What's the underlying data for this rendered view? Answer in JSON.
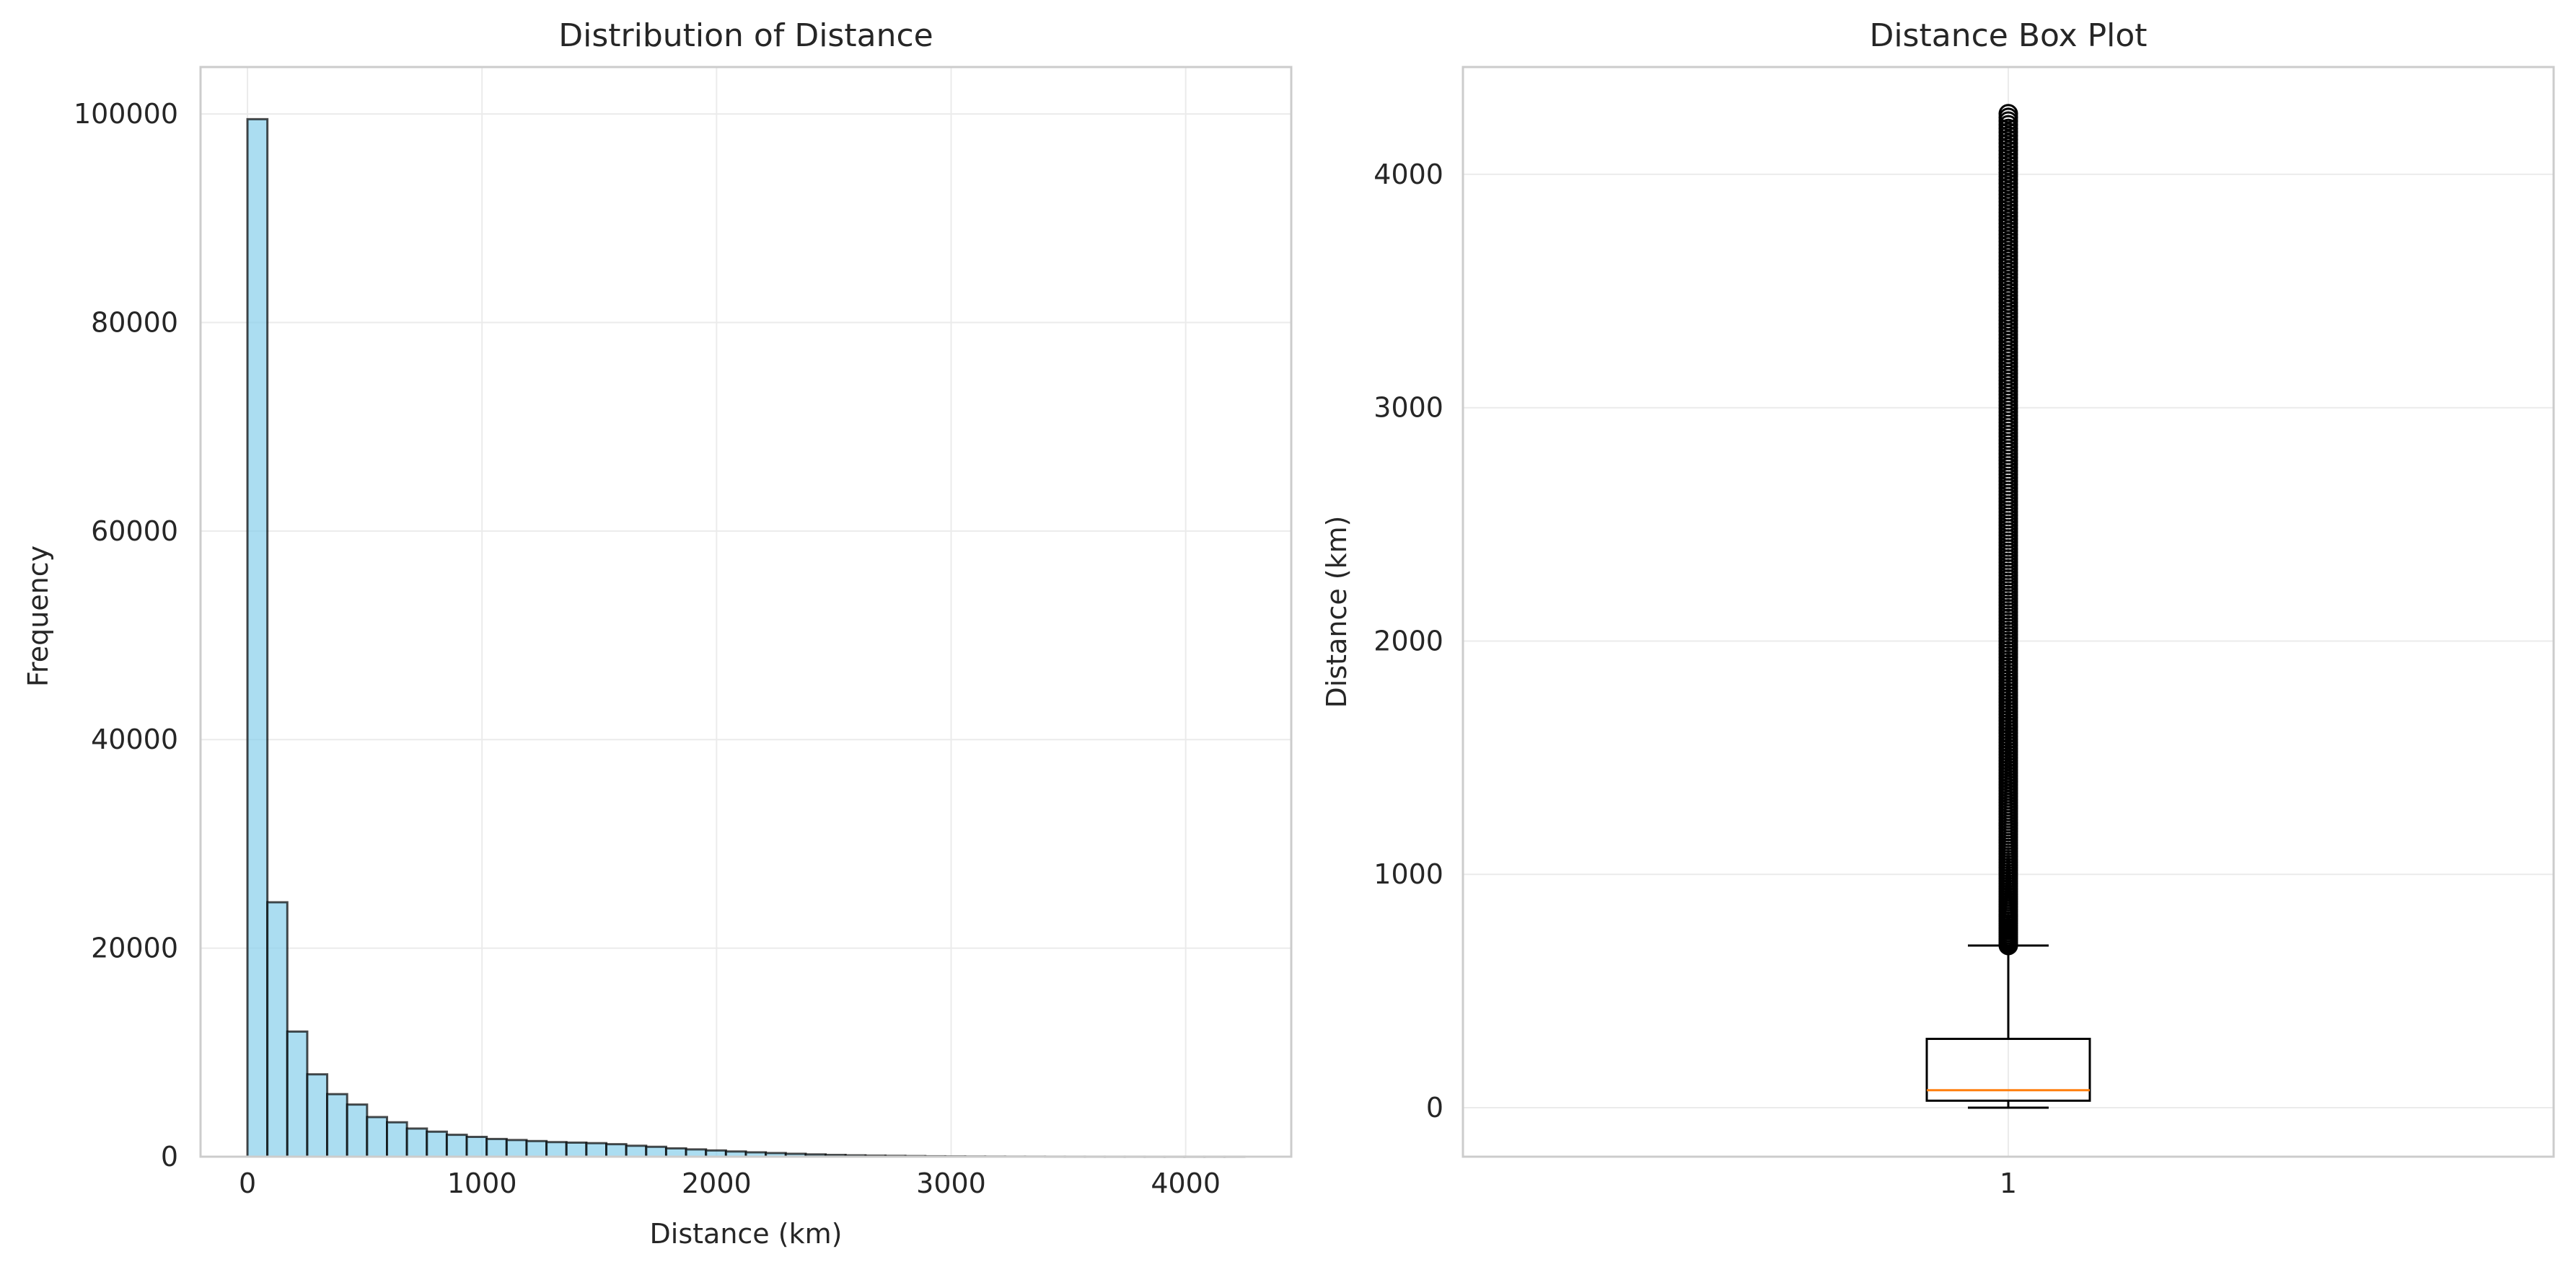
{
  "chart_data": [
    {
      "type": "bar",
      "subtype": "histogram",
      "title": "Distribution of Distance",
      "xlabel": "Distance (km)",
      "ylabel": "Frequency",
      "xlim": [
        -200,
        4450
      ],
      "ylim": [
        0,
        104500
      ],
      "xticks": [
        0,
        1000,
        2000,
        3000,
        4000
      ],
      "yticks": [
        0,
        20000,
        40000,
        60000,
        80000,
        100000
      ],
      "grid": true,
      "bin_start": 0,
      "bin_width": 85,
      "values": [
        99500,
        24400,
        12000,
        7900,
        6000,
        5000,
        3800,
        3300,
        2700,
        2400,
        2100,
        1900,
        1700,
        1600,
        1500,
        1400,
        1350,
        1300,
        1200,
        1050,
        950,
        800,
        700,
        600,
        500,
        420,
        350,
        280,
        220,
        170,
        130,
        100,
        80,
        60,
        40,
        30,
        20,
        15,
        10,
        8,
        5,
        4,
        3,
        2,
        2,
        1,
        1,
        1,
        1,
        1
      ],
      "colors": {
        "bar_fill": "#87ceeb",
        "bar_edge": "#000000"
      }
    },
    {
      "type": "box",
      "title": "Distance Box Plot",
      "xlabel": "",
      "ylabel": "Distance (km)",
      "ylim": [
        -210,
        4460
      ],
      "yticks": [
        0,
        1000,
        2000,
        3000,
        4000
      ],
      "xticks": [
        "1"
      ],
      "grid": true,
      "box": {
        "whisker_low": 0,
        "q1": 30,
        "median": 75,
        "q3": 295,
        "whisker_high": 695,
        "outliers_from": 695,
        "outliers_to": 4260
      },
      "colors": {
        "median": "#ff7f0e",
        "box": "#000000"
      }
    }
  ]
}
